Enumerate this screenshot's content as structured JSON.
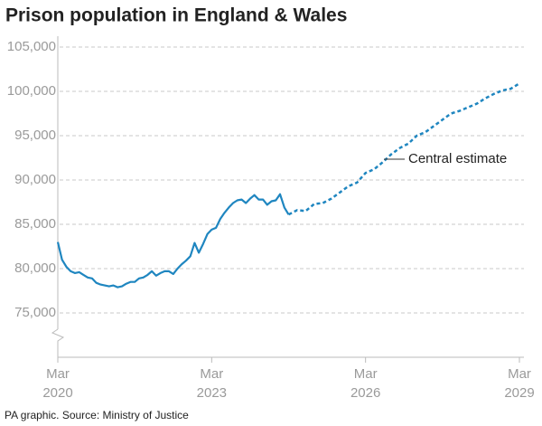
{
  "chart_data": {
    "type": "line",
    "title": "Prison population in England & Wales",
    "source": "PA graphic. Source: Ministry of Justice",
    "annotation": "Central estimate",
    "xlim": [
      "2020-03",
      "2029-03"
    ],
    "xticks": [
      {
        "value": "2020-03",
        "label": [
          "Mar",
          "2020"
        ]
      },
      {
        "value": "2023-03",
        "label": [
          "Mar",
          "2023"
        ]
      },
      {
        "value": "2026-03",
        "label": [
          "Mar",
          "2026"
        ]
      },
      {
        "value": "2029-03",
        "label": [
          "Mar",
          "2029"
        ]
      }
    ],
    "ylim": [
      70000,
      105000
    ],
    "yticks": [
      {
        "value": 75000,
        "label": "75,000"
      },
      {
        "value": 80000,
        "label": "80,000"
      },
      {
        "value": 85000,
        "label": "85,000"
      },
      {
        "value": 90000,
        "label": "90,000"
      },
      {
        "value": 95000,
        "label": "95,000"
      },
      {
        "value": 100000,
        "label": "100,000"
      },
      {
        "value": 105000,
        "label": "105,000"
      }
    ],
    "grid": true,
    "series": [
      {
        "color": "#1f86c0",
        "dashed": false,
        "x": [
          "2020-03",
          "2020-04",
          "2020-05",
          "2020-06",
          "2020-07",
          "2020-08",
          "2020-09",
          "2020-10",
          "2020-11",
          "2020-12",
          "2021-01",
          "2021-02",
          "2021-03",
          "2021-04",
          "2021-05",
          "2021-06",
          "2021-07",
          "2021-08",
          "2021-09",
          "2021-10",
          "2021-11",
          "2021-12",
          "2022-01",
          "2022-02",
          "2022-03",
          "2022-04",
          "2022-05",
          "2022-06",
          "2022-07",
          "2022-08",
          "2022-09",
          "2022-10",
          "2022-11",
          "2022-12",
          "2023-01",
          "2023-02",
          "2023-03",
          "2023-04",
          "2023-05",
          "2023-06",
          "2023-07",
          "2023-08",
          "2023-09",
          "2023-10",
          "2023-11",
          "2023-12",
          "2024-01",
          "2024-02",
          "2024-03",
          "2024-04",
          "2024-05",
          "2024-06",
          "2024-07",
          "2024-08",
          "2024-09"
        ],
        "values": [
          83000,
          81000,
          80200,
          79700,
          79500,
          79600,
          79300,
          79000,
          78900,
          78400,
          78200,
          78100,
          78000,
          78100,
          77900,
          78000,
          78300,
          78500,
          78500,
          78900,
          79000,
          79300,
          79700,
          79200,
          79500,
          79700,
          79700,
          79400,
          80000,
          80500,
          80900,
          81400,
          82900,
          81800,
          82800,
          83900,
          84400,
          84600,
          85600,
          86300,
          86900,
          87400,
          87700,
          87800,
          87400,
          87900,
          88300,
          87800,
          87800,
          87200,
          87600,
          87700,
          88400,
          86900,
          86100
        ]
      },
      {
        "color": "#1f86c0",
        "dashed": true,
        "x": [
          "2024-09",
          "2024-11",
          "2025-01",
          "2025-03",
          "2025-05",
          "2025-07",
          "2025-09",
          "2025-11",
          "2026-01",
          "2026-03",
          "2026-05",
          "2026-07",
          "2026-09",
          "2026-11",
          "2027-01",
          "2027-03",
          "2027-05",
          "2027-07",
          "2027-09",
          "2027-11",
          "2028-01",
          "2028-03",
          "2028-05",
          "2028-07",
          "2028-09",
          "2028-11",
          "2029-01",
          "2029-03"
        ],
        "values": [
          86100,
          86600,
          86500,
          87300,
          87400,
          87900,
          88600,
          89300,
          89700,
          90800,
          91200,
          92000,
          92900,
          93600,
          94100,
          95000,
          95400,
          96100,
          96800,
          97500,
          97800,
          98200,
          98600,
          99200,
          99700,
          100100,
          100300,
          100900
        ]
      }
    ]
  }
}
